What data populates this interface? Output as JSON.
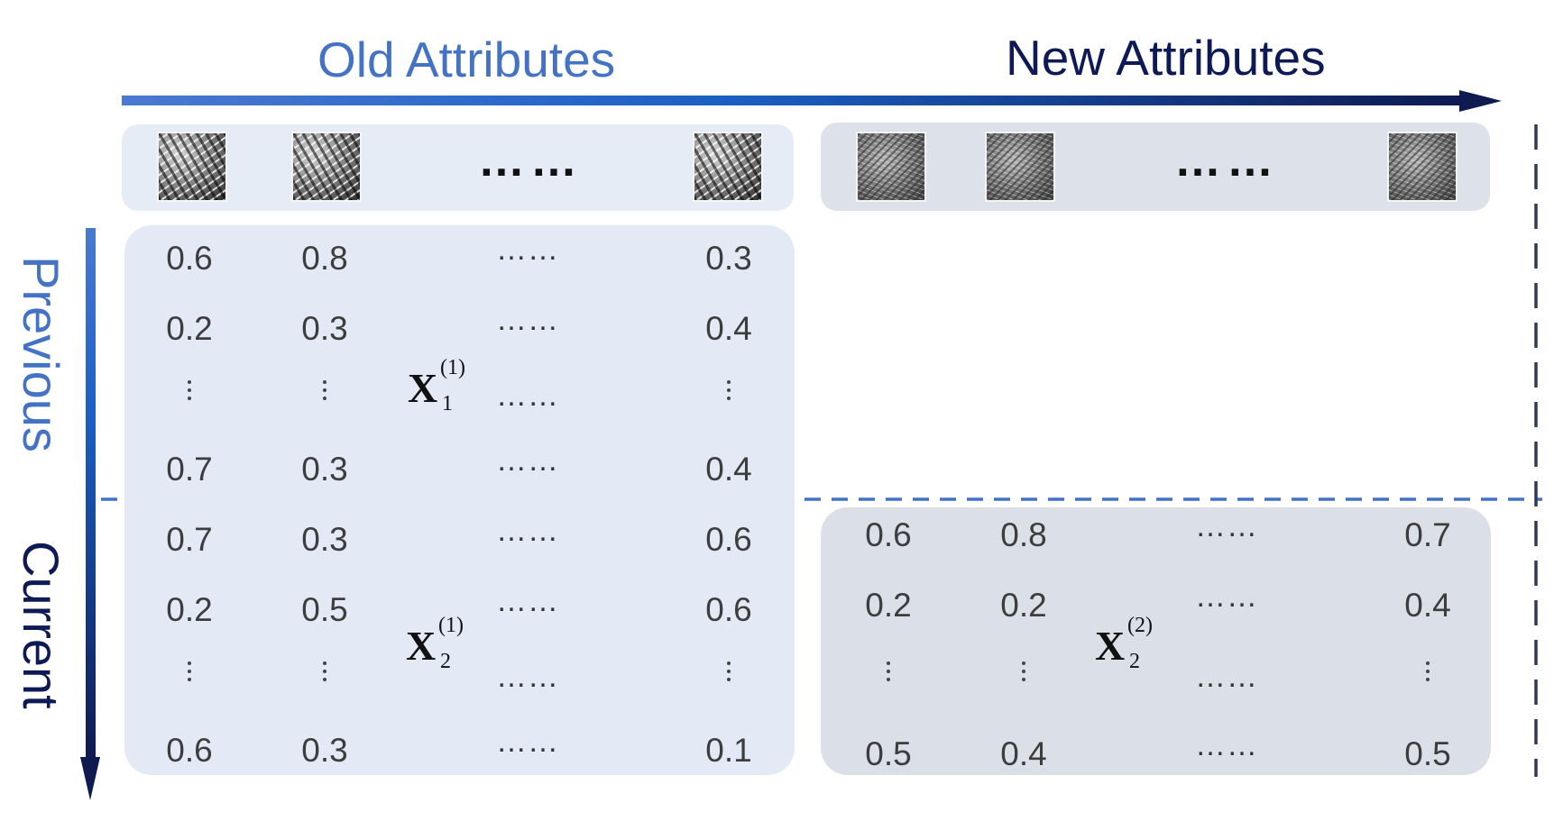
{
  "header": {
    "old_attributes": "Old Attributes",
    "new_attributes": "New Attributes"
  },
  "side": {
    "previous": "Previous",
    "current": "Current"
  },
  "thumbnails": {
    "old_row": [
      "texture-image",
      "texture-image",
      "ellipsis",
      "texture-image"
    ],
    "new_row": [
      "texture-image",
      "texture-image",
      "ellipsis",
      "texture-image"
    ],
    "ellipsis": "……"
  },
  "matrices": {
    "x1_1": {
      "symbol": "X",
      "superscript": "(1)",
      "subscript": "1",
      "rows": [
        [
          "0.6",
          "0.8",
          "……",
          "0.3"
        ],
        [
          "0.2",
          "0.3",
          "……",
          "0.4"
        ],
        [
          "⋮",
          "⋮",
          "……",
          "⋮"
        ],
        [
          "0.7",
          "0.3",
          "……",
          "0.4"
        ]
      ]
    },
    "x2_1": {
      "symbol": "X",
      "superscript": "(1)",
      "subscript": "2",
      "rows": [
        [
          "0.7",
          "0.3",
          "……",
          "0.6"
        ],
        [
          "0.2",
          "0.5",
          "……",
          "0.6"
        ],
        [
          "⋮",
          "⋮",
          "……",
          "⋮"
        ],
        [
          "0.6",
          "0.3",
          "……",
          "0.1"
        ]
      ]
    },
    "x2_2": {
      "symbol": "X",
      "superscript": "(2)",
      "subscript": "2",
      "rows": [
        [
          "0.6",
          "0.8",
          "……",
          "0.7"
        ],
        [
          "0.2",
          "0.2",
          "……",
          "0.4"
        ],
        [
          "⋮",
          "⋮",
          "……",
          "⋮"
        ],
        [
          "0.5",
          "0.4",
          "……",
          "0.5"
        ]
      ]
    }
  },
  "colors": {
    "light_blue": "#4472c4",
    "dark_navy": "#0e1a55",
    "panel_blue": "#e3eaf5",
    "panel_gray": "#dbdfe7",
    "dashed_line": "#4472c4"
  }
}
